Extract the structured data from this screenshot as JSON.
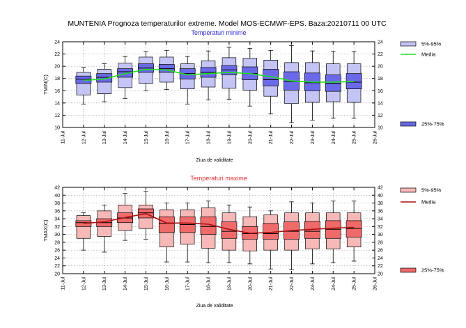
{
  "figure": {
    "main_title": "MUNTENIA  Prognoza temperaturilor extreme.  Model MOS-ECMWF-EPS. Baza:20210711 00 UTC"
  },
  "chart_data": [
    {
      "type": "box",
      "title": "Temperaturi minime",
      "title_color": "#2b2bd6",
      "ylabel": "TMIN(C)",
      "xlabel": "Ziua de validitate",
      "x_ticks": [
        "11-Jul",
        "12-Jul",
        "13-Jul",
        "14-Jul",
        "15-Jul",
        "16-Jul",
        "17-Jul",
        "18-Jul",
        "19-Jul",
        "20-Jul",
        "21-Jul",
        "22-Jul",
        "23-Jul",
        "24-Jul",
        "25-Jul",
        "26-Jul"
      ],
      "ylim": [
        10,
        24
      ],
      "y_ticks": [
        10,
        12,
        14,
        16,
        18,
        20,
        22,
        24
      ],
      "grid": true,
      "legend_position": "right",
      "colors": {
        "outer_fill": "#c4c4f5",
        "inner_fill": "#6a6ae8",
        "edge": "#000000",
        "mean_line": "#22dd22"
      },
      "legend": [
        {
          "label": "5%-95%",
          "kind": "outer"
        },
        {
          "label": "Media",
          "kind": "mean"
        },
        {
          "label": "25%-75%",
          "kind": "inner"
        }
      ],
      "categories": [
        "12-Jul",
        "13-Jul",
        "14-Jul",
        "15-Jul",
        "16-Jul",
        "17-Jul",
        "18-Jul",
        "19-Jul",
        "20-Jul",
        "21-Jul",
        "22-Jul",
        "23-Jul",
        "24-Jul",
        "25-Jul"
      ],
      "min": [
        13.8,
        14.2,
        14.7,
        16.0,
        16.2,
        13.8,
        14.5,
        14.6,
        13.5,
        12.2,
        10.8,
        11.2,
        11.5,
        11.5
      ],
      "p5": [
        15.3,
        15.5,
        16.5,
        17.2,
        17.4,
        16.3,
        16.6,
        16.4,
        16.1,
        15.1,
        13.9,
        14.1,
        14.2,
        14.1
      ],
      "p25": [
        17.2,
        17.4,
        18.2,
        19.0,
        19.0,
        17.9,
        18.2,
        18.6,
        17.8,
        16.8,
        16.1,
        16.0,
        15.9,
        16.3
      ],
      "median": [
        17.9,
        18.2,
        19.1,
        19.7,
        19.6,
        18.8,
        19.0,
        19.4,
        18.8,
        17.8,
        17.5,
        17.3,
        17.2,
        17.4
      ],
      "p75": [
        18.4,
        18.8,
        19.6,
        20.4,
        20.3,
        19.6,
        19.8,
        20.1,
        19.9,
        19.5,
        19.1,
        18.9,
        18.6,
        18.8
      ],
      "p95": [
        19.0,
        19.5,
        20.5,
        21.5,
        21.5,
        20.4,
        20.9,
        21.4,
        21.3,
        21.0,
        20.6,
        20.6,
        20.4,
        20.4
      ],
      "max": [
        19.8,
        20.4,
        21.6,
        22.4,
        22.6,
        21.6,
        22.5,
        23.1,
        22.9,
        22.6,
        23.4,
        22.5,
        22.4,
        22.4
      ],
      "mean": [
        17.7,
        17.9,
        18.8,
        19.5,
        19.4,
        18.6,
        18.8,
        19.0,
        18.8,
        18.3,
        17.6,
        17.4,
        17.4,
        17.5
      ]
    },
    {
      "type": "box",
      "title": "Temperaturi maxime",
      "title_color": "#e03030",
      "ylabel": "TMAX(C)",
      "xlabel": "Ziua de validitate",
      "x_ticks": [
        "11-Jul",
        "12-Jul",
        "13-Jul",
        "14-Jul",
        "15-Jul",
        "16-Jul",
        "17-Jul",
        "18-Jul",
        "19-Jul",
        "20-Jul",
        "21-Jul",
        "22-Jul",
        "23-Jul",
        "24-Jul",
        "25-Jul",
        "26-Jul"
      ],
      "ylim": [
        20,
        42
      ],
      "y_ticks": [
        20,
        22,
        24,
        26,
        28,
        30,
        32,
        34,
        36,
        38,
        40,
        42
      ],
      "grid": true,
      "legend_position": "right",
      "colors": {
        "outer_fill": "#f7b8b8",
        "inner_fill": "#ef6a6a",
        "edge": "#000000",
        "mean_line": "#aa1010"
      },
      "legend": [
        {
          "label": "5%-95%",
          "kind": "outer"
        },
        {
          "label": "Media",
          "kind": "mean"
        },
        {
          "label": "25%-75%",
          "kind": "inner"
        }
      ],
      "categories": [
        "12-Jul",
        "13-Jul",
        "14-Jul",
        "15-Jul",
        "16-Jul",
        "17-Jul",
        "18-Jul",
        "19-Jul",
        "20-Jul",
        "21-Jul",
        "22-Jul",
        "23-Jul",
        "24-Jul",
        "25-Jul"
      ],
      "min": [
        26.0,
        25.5,
        28.5,
        28.8,
        23.0,
        23.0,
        22.8,
        22.8,
        22.5,
        21.2,
        21.0,
        22.5,
        22.8,
        23.2
      ],
      "p5": [
        29.0,
        29.5,
        31.0,
        31.5,
        26.8,
        27.5,
        26.5,
        26.0,
        25.8,
        26.0,
        26.0,
        26.3,
        26.3,
        26.8
      ],
      "p25": [
        32.0,
        32.0,
        33.0,
        34.2,
        30.5,
        30.5,
        30.0,
        29.0,
        28.8,
        28.8,
        28.8,
        29.0,
        29.0,
        29.3
      ],
      "median": [
        33.0,
        33.0,
        34.2,
        35.5,
        32.8,
        32.5,
        32.0,
        30.8,
        30.2,
        30.2,
        30.8,
        30.8,
        31.3,
        31.5
      ],
      "p75": [
        33.5,
        34.0,
        35.5,
        36.5,
        34.5,
        34.5,
        34.5,
        33.2,
        32.0,
        32.8,
        33.2,
        33.3,
        33.5,
        33.5
      ],
      "p95": [
        34.8,
        36.0,
        37.5,
        37.5,
        36.3,
        36.3,
        36.8,
        35.5,
        34.5,
        35.0,
        35.5,
        35.5,
        35.5,
        35.5
      ],
      "max": [
        35.5,
        37.5,
        40.5,
        41.0,
        38.0,
        38.0,
        38.5,
        37.5,
        37.0,
        36.0,
        38.3,
        38.0,
        38.5,
        38.5
      ],
      "mean": [
        32.8,
        33.2,
        34.3,
        35.3,
        32.9,
        32.9,
        32.6,
        31.3,
        30.3,
        30.5,
        31.0,
        31.3,
        31.6,
        31.8
      ]
    }
  ]
}
